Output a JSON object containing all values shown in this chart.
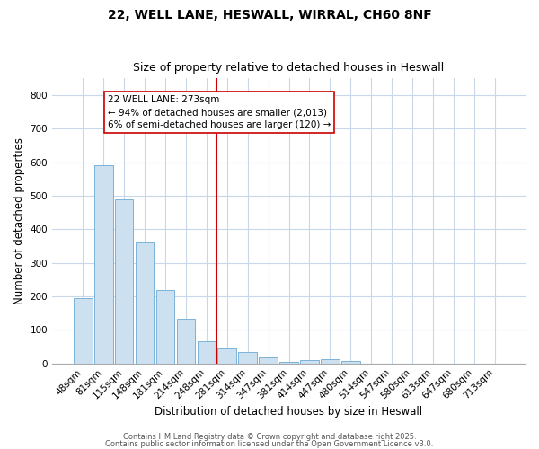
{
  "title1": "22, WELL LANE, HESWALL, WIRRAL, CH60 8NF",
  "title2": "Size of property relative to detached houses in Heswall",
  "xlabel": "Distribution of detached houses by size in Heswall",
  "ylabel": "Number of detached properties",
  "bar_labels": [
    "48sqm",
    "81sqm",
    "115sqm",
    "148sqm",
    "181sqm",
    "214sqm",
    "248sqm",
    "281sqm",
    "314sqm",
    "347sqm",
    "381sqm",
    "414sqm",
    "447sqm",
    "480sqm",
    "514sqm",
    "547sqm",
    "580sqm",
    "613sqm",
    "647sqm",
    "680sqm",
    "713sqm"
  ],
  "bar_values": [
    195,
    590,
    490,
    360,
    220,
    133,
    65,
    45,
    35,
    17,
    5,
    10,
    12,
    7,
    0,
    0,
    0,
    0,
    0,
    0,
    0
  ],
  "bar_color": "#cde0f0",
  "bar_edgecolor": "#7ab3d9",
  "vline_x_index": 7,
  "marker_label": "22 WELL LANE: 273sqm",
  "annotation_line1": "← 94% of detached houses are smaller (2,013)",
  "annotation_line2": "6% of semi-detached houses are larger (120) →",
  "vline_color": "#cc0000",
  "annotation_box_edgecolor": "#cc0000",
  "fig_background_color": "#ffffff",
  "ax_background_color": "#ffffff",
  "grid_color": "#c8d8e8",
  "footnote1": "Contains HM Land Registry data © Crown copyright and database right 2025.",
  "footnote2": "Contains public sector information licensed under the Open Government Licence v3.0.",
  "ylim": [
    0,
    850
  ],
  "yticks": [
    0,
    100,
    200,
    300,
    400,
    500,
    600,
    700,
    800
  ],
  "title1_fontsize": 10,
  "title2_fontsize": 9,
  "xlabel_fontsize": 8.5,
  "ylabel_fontsize": 8.5,
  "tick_fontsize": 7.5,
  "footnote_fontsize": 6,
  "annotation_fontsize": 7.5
}
